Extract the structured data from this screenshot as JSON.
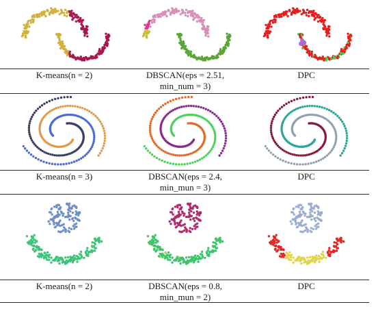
{
  "rows": [
    {
      "dataset": "two-moons",
      "captions": [
        [
          "K-means(n = 2)"
        ],
        [
          "DBSCAN(eps = 2.51,",
          "min_num = 3)"
        ],
        [
          "DPC"
        ]
      ]
    },
    {
      "dataset": "three-spirals",
      "captions": [
        [
          "K-means(n = 3)"
        ],
        [
          "DBSCAN(eps = 2.4,",
          "min_mun = 3)"
        ],
        [
          "DPC"
        ]
      ]
    },
    {
      "dataset": "flower",
      "captions": [
        [
          "K-means(n = 2)"
        ],
        [
          "DBSCAN(eps = 0.8,",
          "min_mun = 2)"
        ],
        [
          "DPC"
        ]
      ]
    }
  ],
  "chart_data": [
    {
      "type": "scatter",
      "title": "K-means(n = 2)",
      "dataset": "two-moons",
      "clusters": [
        {
          "color": "#d4b13a"
        },
        {
          "color": "#a8174f"
        }
      ]
    },
    {
      "type": "scatter",
      "title": "DBSCAN(eps = 2.51, min_num = 3)",
      "dataset": "two-moons",
      "clusters": [
        {
          "color": "#d88fb8"
        },
        {
          "color": "#5aa536"
        },
        {
          "color": "#e0378f"
        },
        {
          "color": "#c9c22a"
        }
      ]
    },
    {
      "type": "scatter",
      "title": "DPC",
      "dataset": "two-moons",
      "clusters": [
        {
          "color": "#e51e1e"
        },
        {
          "color": "#3fd44a"
        },
        {
          "color": "#b06ad8"
        }
      ]
    },
    {
      "type": "scatter",
      "title": "K-means(n = 3)",
      "dataset": "three-spirals",
      "clusters": [
        {
          "color": "#e39a46"
        },
        {
          "color": "#4a6bd4"
        },
        {
          "color": "#3b3f64"
        }
      ]
    },
    {
      "type": "scatter",
      "title": "DBSCAN(eps = 2.4, min_mun = 3)",
      "dataset": "three-spirals",
      "clusters": [
        {
          "color": "#e36b2a"
        },
        {
          "color": "#8a2a8c"
        },
        {
          "color": "#4cd25a"
        }
      ]
    },
    {
      "type": "scatter",
      "title": "DPC",
      "dataset": "three-spirals",
      "clusters": [
        {
          "color": "#8fa2b4"
        },
        {
          "color": "#8a1a3c"
        },
        {
          "color": "#2aa59a"
        }
      ]
    },
    {
      "type": "scatter",
      "title": "K-means(n = 2)",
      "dataset": "flower",
      "clusters": [
        {
          "color": "#6e8fc8"
        },
        {
          "color": "#3cc47a"
        }
      ]
    },
    {
      "type": "scatter",
      "title": "DBSCAN(eps = 0.8, min_mun = 2)",
      "dataset": "flower",
      "clusters": [
        {
          "color": "#b22a6a"
        },
        {
          "color": "#3cc46a"
        },
        {
          "color": "#a8e03a"
        }
      ]
    },
    {
      "type": "scatter",
      "title": "DPC",
      "dataset": "flower",
      "clusters": [
        {
          "color": "#e52525"
        },
        {
          "color": "#9aaed0"
        },
        {
          "color": "#e0d44a"
        }
      ]
    }
  ]
}
